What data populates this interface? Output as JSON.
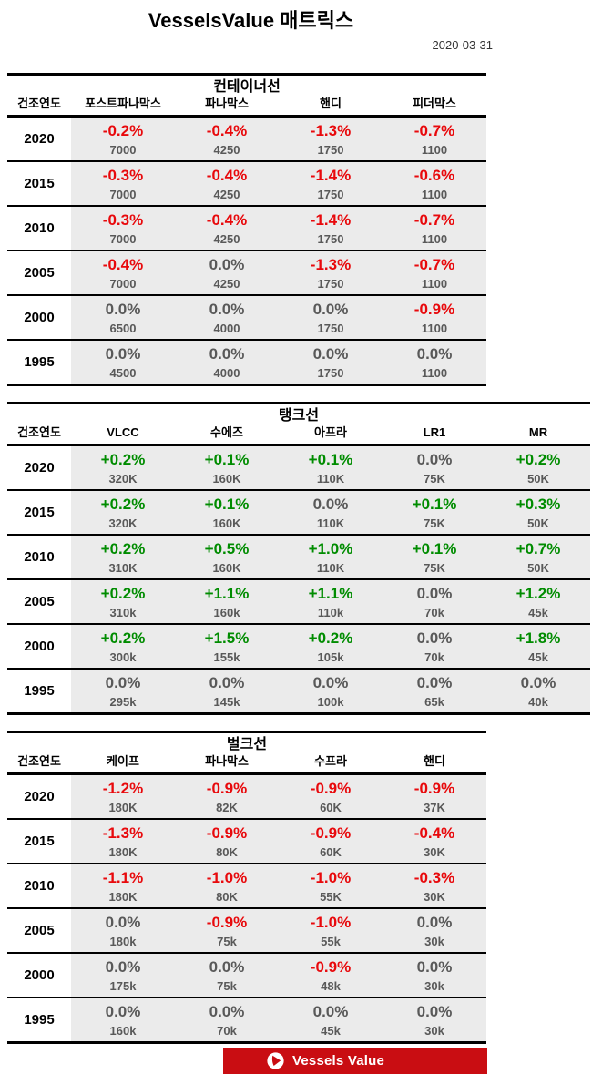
{
  "page": {
    "title": "VesselsValue 매트릭스",
    "date": "2020-03-31"
  },
  "colors": {
    "negative": "#e8090c",
    "positive": "#008c00",
    "neutral": "#595959",
    "cell_background": "#ebebeb",
    "banner": "#c90d12"
  },
  "chart_data": [
    {
      "type": "table",
      "id": "container",
      "title": "컨테이너선",
      "columns": [
        "건조연도",
        "포스트파나막스",
        "파나막스",
        "핸디",
        "피더막스"
      ],
      "rows": [
        {
          "year": "2020",
          "cells": [
            {
              "pct": "-0.2%",
              "value": "7000"
            },
            {
              "pct": "-0.4%",
              "value": "4250"
            },
            {
              "pct": "-1.3%",
              "value": "1750"
            },
            {
              "pct": "-0.7%",
              "value": "1100"
            }
          ]
        },
        {
          "year": "2015",
          "cells": [
            {
              "pct": "-0.3%",
              "value": "7000"
            },
            {
              "pct": "-0.4%",
              "value": "4250"
            },
            {
              "pct": "-1.4%",
              "value": "1750"
            },
            {
              "pct": "-0.6%",
              "value": "1100"
            }
          ]
        },
        {
          "year": "2010",
          "cells": [
            {
              "pct": "-0.3%",
              "value": "7000"
            },
            {
              "pct": "-0.4%",
              "value": "4250"
            },
            {
              "pct": "-1.4%",
              "value": "1750"
            },
            {
              "pct": "-0.7%",
              "value": "1100"
            }
          ]
        },
        {
          "year": "2005",
          "cells": [
            {
              "pct": "-0.4%",
              "value": "7000"
            },
            {
              "pct": "0.0%",
              "value": "4250"
            },
            {
              "pct": "-1.3%",
              "value": "1750"
            },
            {
              "pct": "-0.7%",
              "value": "1100"
            }
          ]
        },
        {
          "year": "2000",
          "cells": [
            {
              "pct": "0.0%",
              "value": "6500"
            },
            {
              "pct": "0.0%",
              "value": "4000"
            },
            {
              "pct": "0.0%",
              "value": "1750"
            },
            {
              "pct": "-0.9%",
              "value": "1100"
            }
          ]
        },
        {
          "year": "1995",
          "cells": [
            {
              "pct": "0.0%",
              "value": "4500"
            },
            {
              "pct": "0.0%",
              "value": "4000"
            },
            {
              "pct": "0.0%",
              "value": "1750"
            },
            {
              "pct": "0.0%",
              "value": "1100"
            }
          ]
        }
      ]
    },
    {
      "type": "table",
      "id": "tanker",
      "title": "탱크선",
      "columns": [
        "건조연도",
        "VLCC",
        "수에즈",
        "아프라",
        "LR1",
        "MR"
      ],
      "rows": [
        {
          "year": "2020",
          "cells": [
            {
              "pct": "+0.2%",
              "value": "320K"
            },
            {
              "pct": "+0.1%",
              "value": "160K"
            },
            {
              "pct": "+0.1%",
              "value": "110K"
            },
            {
              "pct": "0.0%",
              "value": "75K"
            },
            {
              "pct": "+0.2%",
              "value": "50K"
            }
          ]
        },
        {
          "year": "2015",
          "cells": [
            {
              "pct": "+0.2%",
              "value": "320K"
            },
            {
              "pct": "+0.1%",
              "value": "160K"
            },
            {
              "pct": "0.0%",
              "value": "110K"
            },
            {
              "pct": "+0.1%",
              "value": "75K"
            },
            {
              "pct": "+0.3%",
              "value": "50K"
            }
          ]
        },
        {
          "year": "2010",
          "cells": [
            {
              "pct": "+0.2%",
              "value": "310K"
            },
            {
              "pct": "+0.5%",
              "value": "160K"
            },
            {
              "pct": "+1.0%",
              "value": "110K"
            },
            {
              "pct": "+0.1%",
              "value": "75K"
            },
            {
              "pct": "+0.7%",
              "value": "50K"
            }
          ]
        },
        {
          "year": "2005",
          "cells": [
            {
              "pct": "+0.2%",
              "value": "310k"
            },
            {
              "pct": "+1.1%",
              "value": "160k"
            },
            {
              "pct": "+1.1%",
              "value": "110k"
            },
            {
              "pct": "0.0%",
              "value": "70k"
            },
            {
              "pct": "+1.2%",
              "value": "45k"
            }
          ]
        },
        {
          "year": "2000",
          "cells": [
            {
              "pct": "+0.2%",
              "value": "300k"
            },
            {
              "pct": "+1.5%",
              "value": "155k"
            },
            {
              "pct": "+0.2%",
              "value": "105k"
            },
            {
              "pct": "0.0%",
              "value": "70k"
            },
            {
              "pct": "+1.8%",
              "value": "45k"
            }
          ]
        },
        {
          "year": "1995",
          "cells": [
            {
              "pct": "0.0%",
              "value": "295k"
            },
            {
              "pct": "0.0%",
              "value": "145k"
            },
            {
              "pct": "0.0%",
              "value": "100k"
            },
            {
              "pct": "0.0%",
              "value": "65k"
            },
            {
              "pct": "0.0%",
              "value": "40k"
            }
          ]
        }
      ]
    },
    {
      "type": "table",
      "id": "bulker",
      "title": "벌크선",
      "columns": [
        "건조연도",
        "케이프",
        "파나막스",
        "수프라",
        "핸디"
      ],
      "rows": [
        {
          "year": "2020",
          "cells": [
            {
              "pct": "-1.2%",
              "value": "180K"
            },
            {
              "pct": "-0.9%",
              "value": "82K"
            },
            {
              "pct": "-0.9%",
              "value": "60K"
            },
            {
              "pct": "-0.9%",
              "value": "37K"
            }
          ]
        },
        {
          "year": "2015",
          "cells": [
            {
              "pct": "-1.3%",
              "value": "180K"
            },
            {
              "pct": "-0.9%",
              "value": "80K"
            },
            {
              "pct": "-0.9%",
              "value": "60K"
            },
            {
              "pct": "-0.4%",
              "value": "30K"
            }
          ]
        },
        {
          "year": "2010",
          "cells": [
            {
              "pct": "-1.1%",
              "value": "180K"
            },
            {
              "pct": "-1.0%",
              "value": "80K"
            },
            {
              "pct": "-1.0%",
              "value": "55K"
            },
            {
              "pct": "-0.3%",
              "value": "30K"
            }
          ]
        },
        {
          "year": "2005",
          "cells": [
            {
              "pct": "0.0%",
              "value": "180k"
            },
            {
              "pct": "-0.9%",
              "value": "75k"
            },
            {
              "pct": "-1.0%",
              "value": "55k"
            },
            {
              "pct": "0.0%",
              "value": "30k"
            }
          ]
        },
        {
          "year": "2000",
          "cells": [
            {
              "pct": "0.0%",
              "value": "175k"
            },
            {
              "pct": "0.0%",
              "value": "75k"
            },
            {
              "pct": "-0.9%",
              "value": "48k"
            },
            {
              "pct": "0.0%",
              "value": "30k"
            }
          ]
        },
        {
          "year": "1995",
          "cells": [
            {
              "pct": "0.0%",
              "value": "160k"
            },
            {
              "pct": "0.0%",
              "value": "70k"
            },
            {
              "pct": "0.0%",
              "value": "45k"
            },
            {
              "pct": "0.0%",
              "value": "30k"
            }
          ]
        }
      ]
    }
  ],
  "footer": {
    "brand": "Vessels Value",
    "logo_icon": "vesselsvalue-circle-icon"
  }
}
